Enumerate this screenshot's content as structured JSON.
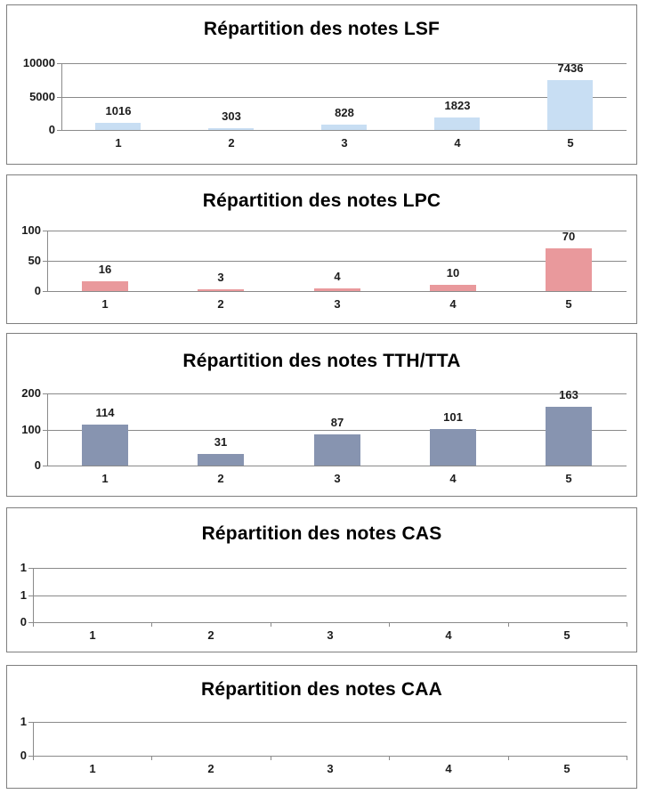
{
  "chart_data": [
    {
      "type": "bar",
      "title": "Répartition des notes LSF",
      "categories": [
        "1",
        "2",
        "3",
        "4",
        "5"
      ],
      "values": [
        1016,
        303,
        828,
        1823,
        7436
      ],
      "data_labels": [
        "1016",
        "303",
        "828",
        "1823",
        "7436"
      ],
      "ylim": [
        0,
        10000
      ],
      "yticks": [
        {
          "value": 0,
          "label": "0"
        },
        {
          "value": 5000,
          "label": "5000"
        },
        {
          "value": 10000,
          "label": "10000"
        }
      ],
      "bar_color": "#c8def3",
      "grid": true,
      "show_data_labels": true,
      "x_axis_boundary_ticks": false,
      "legend": "none"
    },
    {
      "type": "bar",
      "title": "Répartition des notes LPC",
      "categories": [
        "1",
        "2",
        "3",
        "4",
        "5"
      ],
      "values": [
        16,
        3,
        4,
        10,
        70
      ],
      "data_labels": [
        "16",
        "3",
        "4",
        "10",
        "70"
      ],
      "ylim": [
        0,
        100
      ],
      "yticks": [
        {
          "value": 0,
          "label": "0"
        },
        {
          "value": 50,
          "label": "50"
        },
        {
          "value": 100,
          "label": "100"
        }
      ],
      "bar_color": "#e9999c",
      "grid": true,
      "show_data_labels": true,
      "x_axis_boundary_ticks": false,
      "legend": "none"
    },
    {
      "type": "bar",
      "title": "Répartition des notes TTH/TTA",
      "categories": [
        "1",
        "2",
        "3",
        "4",
        "5"
      ],
      "values": [
        114,
        31,
        87,
        101,
        163
      ],
      "data_labels": [
        "114",
        "31",
        "87",
        "101",
        "163"
      ],
      "ylim": [
        0,
        200
      ],
      "yticks": [
        {
          "value": 0,
          "label": "0"
        },
        {
          "value": 100,
          "label": "100"
        },
        {
          "value": 200,
          "label": "200"
        }
      ],
      "bar_color": "#8794b0",
      "grid": true,
      "show_data_labels": true,
      "x_axis_boundary_ticks": false,
      "legend": "none"
    },
    {
      "type": "bar",
      "title": "Répartition des notes CAS",
      "categories": [
        "1",
        "2",
        "3",
        "4",
        "5"
      ],
      "values": [],
      "data_labels": [],
      "ylim": [
        0,
        1
      ],
      "yticks": [
        {
          "value": 0,
          "label": "0"
        },
        {
          "value": 0.5,
          "label": "1"
        },
        {
          "value": 1,
          "label": "1"
        }
      ],
      "bar_color": "#c8def3",
      "grid": true,
      "show_data_labels": false,
      "x_axis_boundary_ticks": true,
      "legend": "none"
    },
    {
      "type": "bar",
      "title": "Répartition des notes CAA",
      "categories": [
        "1",
        "2",
        "3",
        "4",
        "5"
      ],
      "values": [],
      "data_labels": [],
      "ylim": [
        0,
        1
      ],
      "yticks": [
        {
          "value": 0,
          "label": "0"
        },
        {
          "value": 1,
          "label": "1"
        }
      ],
      "bar_color": "#c8def3",
      "grid": true,
      "show_data_labels": false,
      "x_axis_boundary_ticks": true,
      "legend": "none"
    }
  ],
  "colors": {
    "grid": "#8a8a8a",
    "panel_border": "#7f7f7f",
    "lsf_bar": "#c8def3",
    "lpc_bar": "#e9999c",
    "tth_tta_bar": "#8794b0"
  }
}
